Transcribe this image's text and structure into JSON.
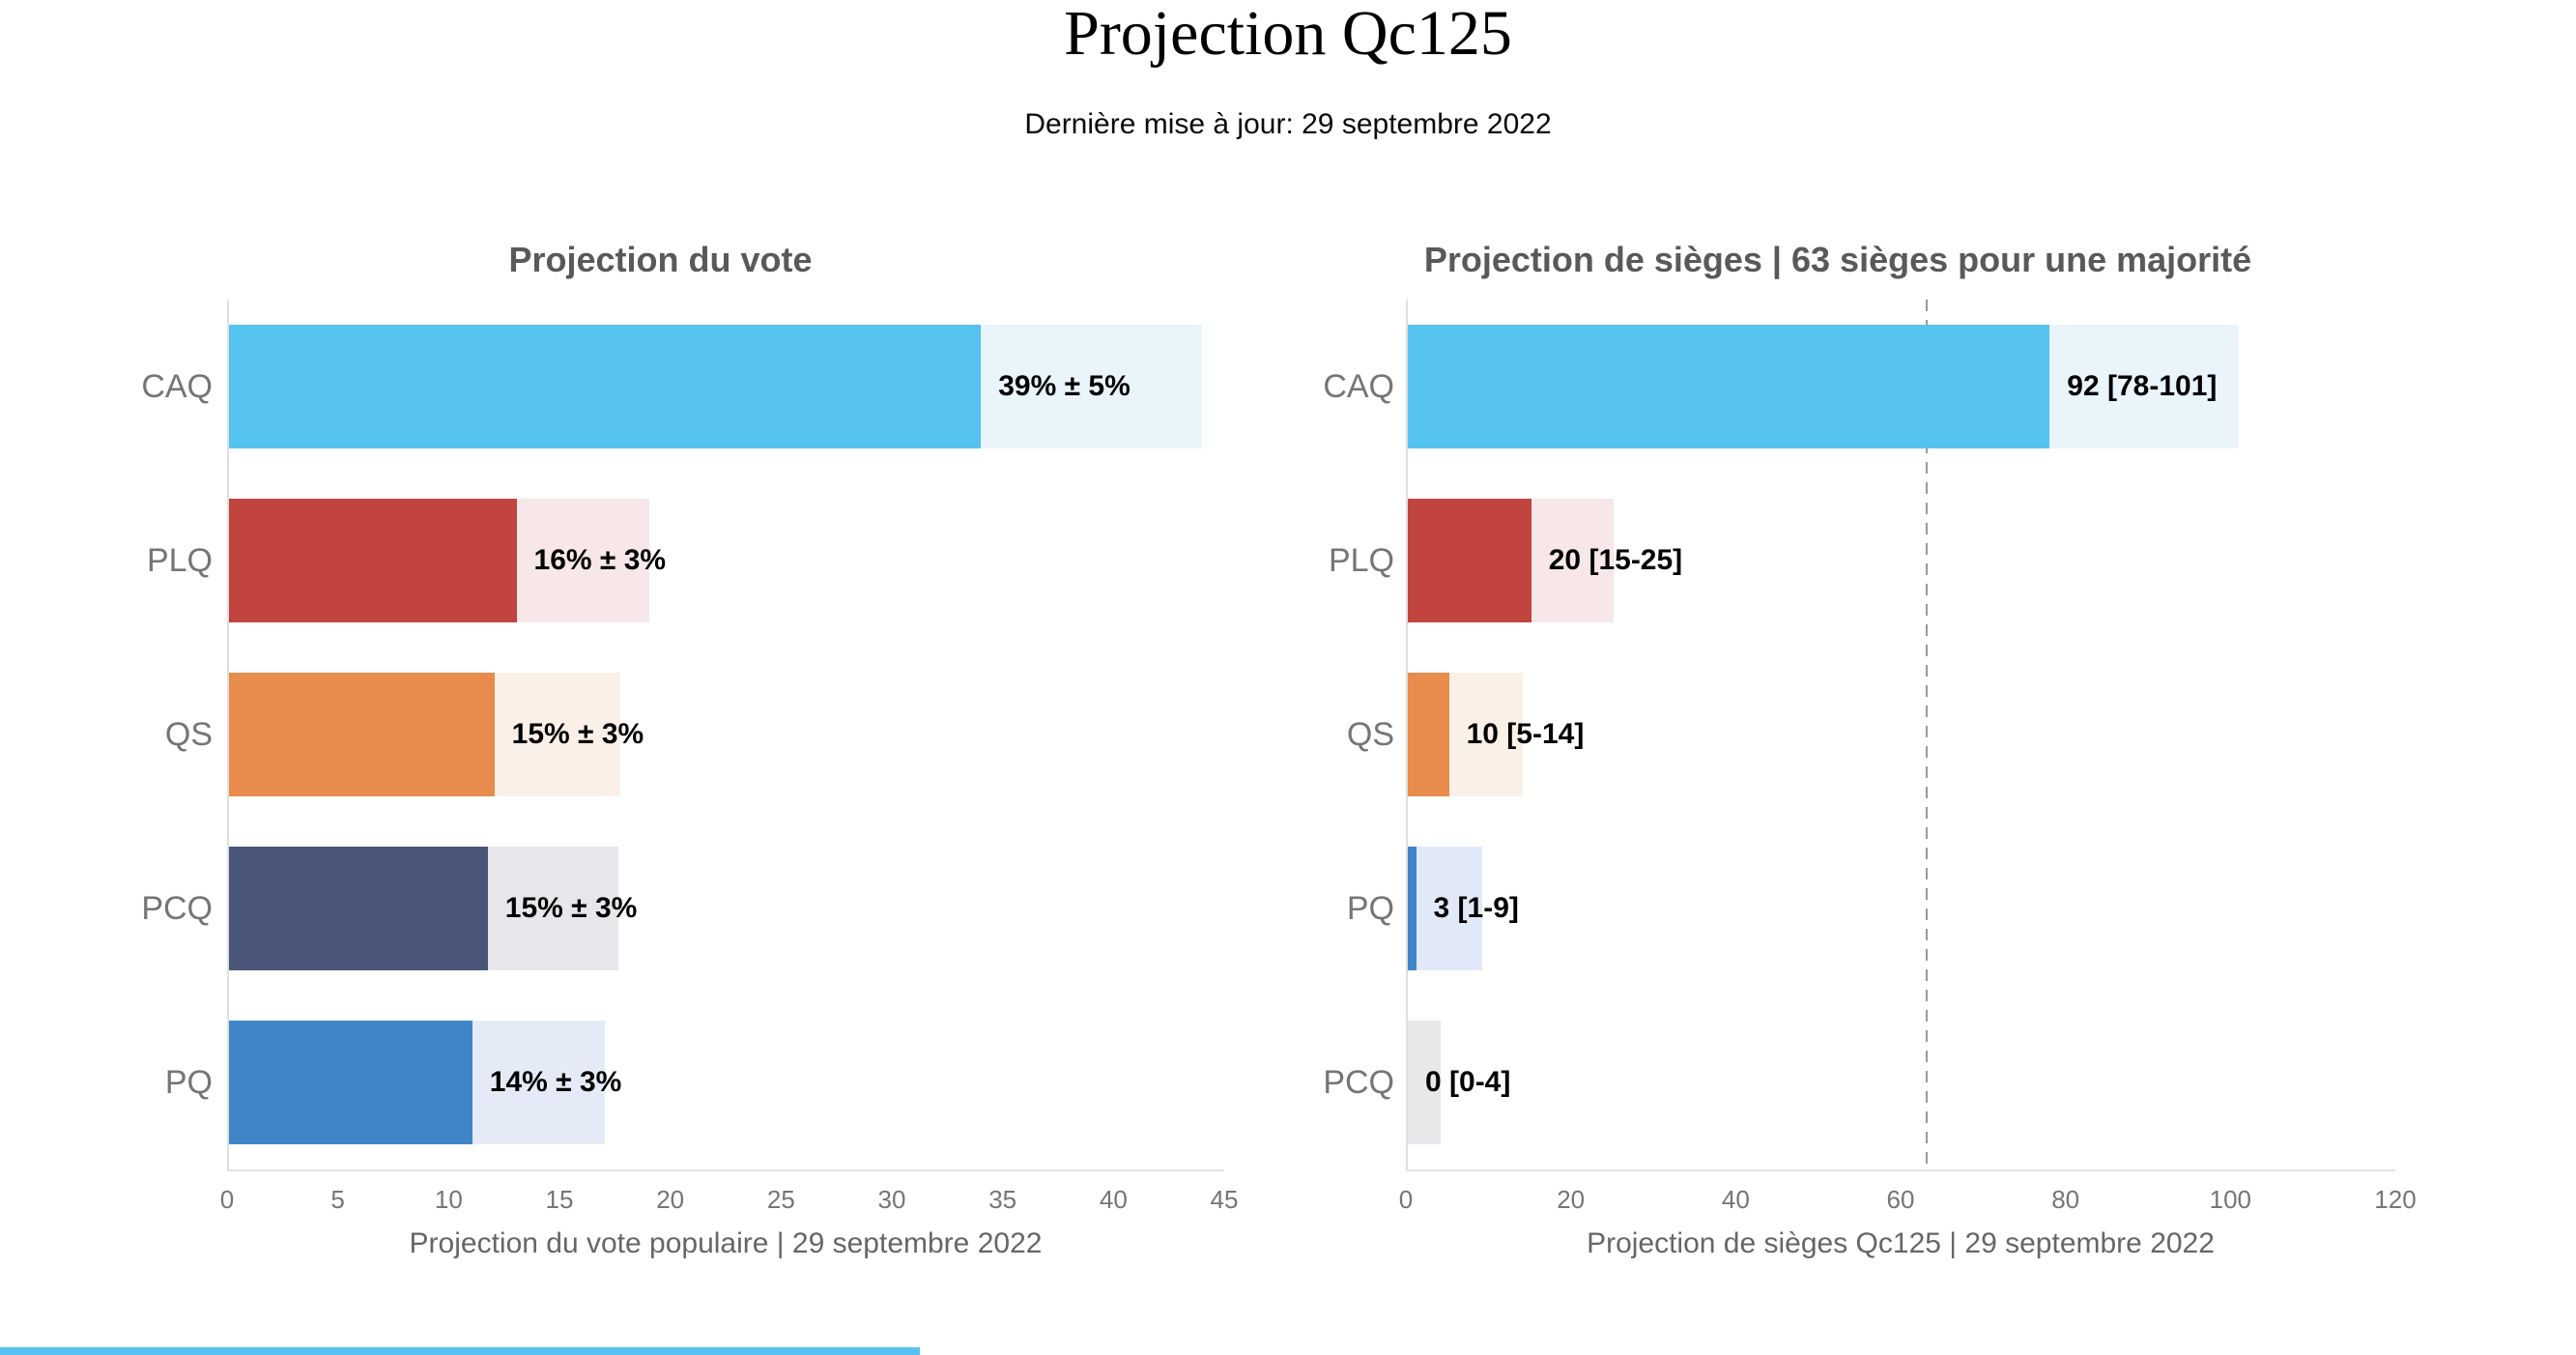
{
  "page": {
    "title": "Projection Qc125",
    "subtitle": "Dernière mise à jour: 29 septembre 2022"
  },
  "colors": {
    "caq": "#56C2F0",
    "plq": "#C2443E",
    "qs": "#E78C4C",
    "pcq": "#4A5679",
    "pq": "#3F85C8",
    "axis_line": "#E3E3E3",
    "majority_line": "#999999",
    "bottom_strip": "#56C2F0"
  },
  "chart_data": [
    {
      "type": "bar",
      "orientation": "horizontal",
      "title": "Projection du vote",
      "xlabel": "Projection du vote populaire | 29 septembre 2022",
      "xlim": [
        0,
        45
      ],
      "xticks": [
        0,
        5,
        10,
        15,
        20,
        25,
        30,
        35,
        40,
        45
      ],
      "grid": false,
      "legend": false,
      "categories": [
        "CAQ",
        "PLQ",
        "QS",
        "PCQ",
        "PQ"
      ],
      "values": [
        39,
        16,
        15,
        15,
        14
      ],
      "series": [
        {
          "party": "CAQ",
          "label": "39% ± 5%",
          "value": 39,
          "margin": 5,
          "bar_low": 34,
          "bar_high": 44,
          "color": "#56C2F0",
          "band_color": "#EAF4FB"
        },
        {
          "party": "PLQ",
          "label": "16% ± 3%",
          "value": 16,
          "margin": 3,
          "bar_low": 13,
          "bar_high": 19,
          "color": "#C2443E",
          "band_color": "#F7E7E8"
        },
        {
          "party": "QS",
          "label": "15% ± 3%",
          "value": 15,
          "margin": 3,
          "bar_low": 12,
          "bar_high": 17.7,
          "color": "#E78C4C",
          "band_color": "#FBF0E7"
        },
        {
          "party": "PCQ",
          "label": "15% ± 3%",
          "value": 15,
          "margin": 3,
          "bar_low": 11.7,
          "bar_high": 17.6,
          "color": "#4A5679",
          "band_color": "#E6E6EB"
        },
        {
          "party": "PQ",
          "label": "14% ± 3%",
          "value": 14,
          "margin": 3,
          "bar_low": 11,
          "bar_high": 17,
          "color": "#3F85C8",
          "band_color": "#E4EBF6"
        }
      ]
    },
    {
      "type": "bar",
      "orientation": "horizontal",
      "title": "Projection de sièges | 63 sièges pour une majorité",
      "xlabel": "Projection de sièges Qc125 | 29 septembre 2022",
      "xlim": [
        0,
        120
      ],
      "xticks": [
        0,
        20,
        40,
        60,
        80,
        100,
        120
      ],
      "grid": false,
      "legend": false,
      "majority_line": {
        "value": 63,
        "style": "dashed",
        "color": "#999999"
      },
      "categories": [
        "CAQ",
        "PLQ",
        "QS",
        "PQ",
        "PCQ"
      ],
      "values": [
        92,
        20,
        10,
        3,
        0
      ],
      "series": [
        {
          "party": "CAQ",
          "label": "92 [78-101]",
          "value": 92,
          "bar_low": 78,
          "bar_high": 101,
          "color": "#56C2F0",
          "band_color": "#EAF4FB"
        },
        {
          "party": "PLQ",
          "label": "20 [15-25]",
          "value": 20,
          "bar_low": 15,
          "bar_high": 25,
          "color": "#C2443E",
          "band_color": "#F7E7E8"
        },
        {
          "party": "QS",
          "label": "10 [5-14]",
          "value": 10,
          "bar_low": 5,
          "bar_high": 14,
          "color": "#E78C4C",
          "band_color": "#FBF0E7"
        },
        {
          "party": "PQ",
          "label": "3 [1-9]",
          "value": 3,
          "bar_low": 1,
          "bar_high": 9,
          "color": "#3F85C8",
          "band_color": "#E1E9F8"
        },
        {
          "party": "PCQ",
          "label": "0 [0-4]",
          "value": 0,
          "bar_low": 0,
          "bar_high": 4,
          "color": "#4A5679",
          "band_color": "#E8E8EB"
        }
      ]
    }
  ]
}
